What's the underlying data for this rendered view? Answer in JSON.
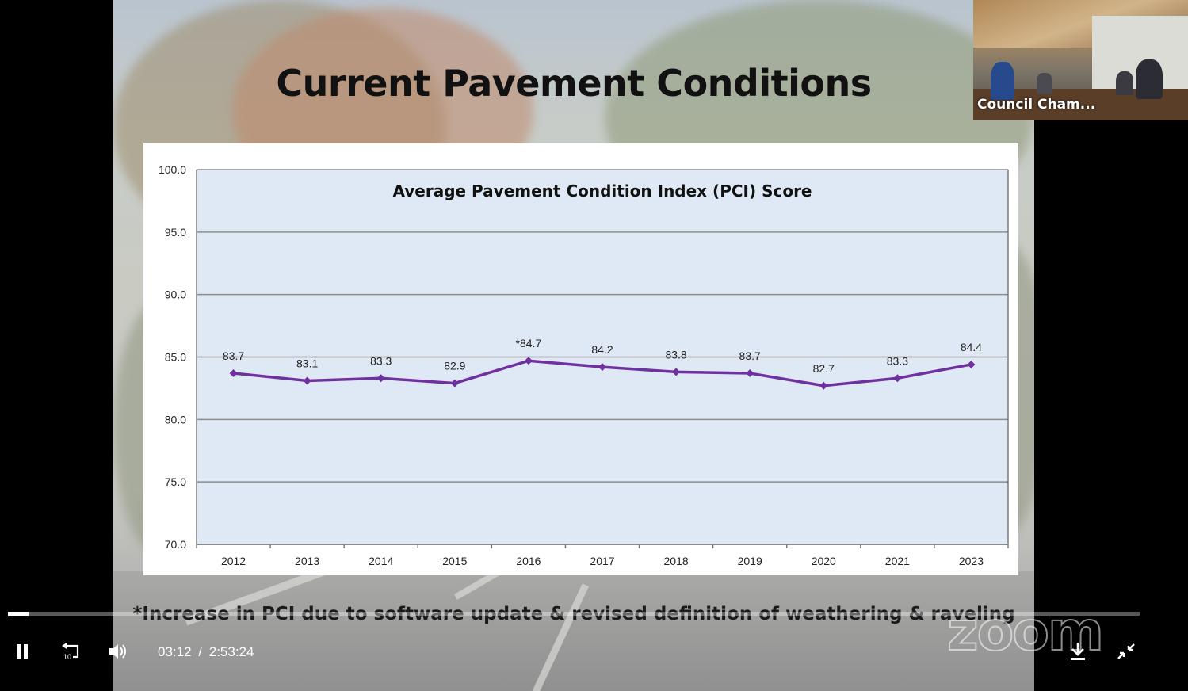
{
  "slide": {
    "title": "Current Pavement Conditions",
    "footnote": "*Increase in PCI due to software update & revised definition of weathering & raveling"
  },
  "chart_data": {
    "type": "line",
    "title": "Average Pavement Condition Index (PCI) Score",
    "xlabel": "",
    "ylabel": "",
    "categories": [
      "2012",
      "2013",
      "2014",
      "2015",
      "2016",
      "2017",
      "2018",
      "2019",
      "2020",
      "2021",
      "2023"
    ],
    "values": [
      83.7,
      83.1,
      83.3,
      82.9,
      84.7,
      84.2,
      83.8,
      83.7,
      82.7,
      83.3,
      84.4
    ],
    "data_labels": [
      "83.7",
      "83.1",
      "83.3",
      "82.9",
      "*84.7",
      "84.2",
      "83.8",
      "83.7",
      "82.7",
      "83.3",
      "84.4"
    ],
    "ylim": [
      70,
      100
    ],
    "yticks": [
      "100.0",
      "95.0",
      "90.0",
      "85.0",
      "80.0",
      "75.0",
      "70.0"
    ],
    "ytick_values": [
      100,
      95,
      90,
      85,
      80,
      75,
      70
    ],
    "grid": true,
    "line_color": "#7030a0",
    "plot_background": "#dfe8f5"
  },
  "video": {
    "pip_label": "Council Cham...",
    "watermark": "zoom",
    "current_time": "03:12",
    "separator": "/",
    "duration": "2:53:24",
    "progress": 0.018,
    "rewind_seconds": "10"
  },
  "icons": {
    "pause": "pause-icon",
    "rewind": "rewind-10-icon",
    "volume": "volume-icon",
    "download": "download-icon",
    "exit_fullscreen": "exit-fullscreen-icon"
  }
}
